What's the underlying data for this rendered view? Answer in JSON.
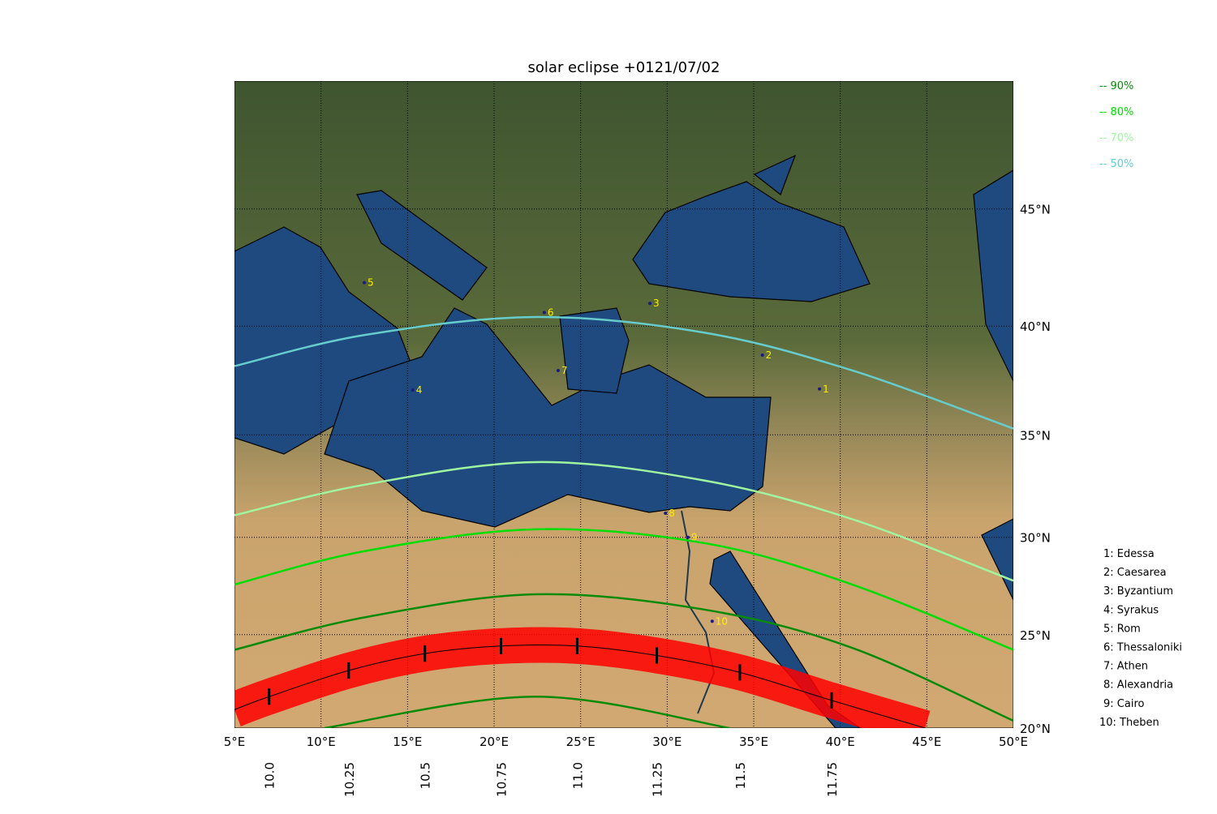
{
  "title": "solar eclipse +0121/07/02",
  "lon_lim": [
    5,
    50
  ],
  "lat_lim": [
    20,
    50
  ],
  "lon_ticks": [
    {
      "value": 5,
      "label": "5°E"
    },
    {
      "value": 10,
      "label": "10°E"
    },
    {
      "value": 15,
      "label": "15°E"
    },
    {
      "value": 20,
      "label": "20°E"
    },
    {
      "value": 25,
      "label": "25°E"
    },
    {
      "value": 30,
      "label": "30°E"
    },
    {
      "value": 35,
      "label": "35°E"
    },
    {
      "value": 40,
      "label": "40°E"
    },
    {
      "value": 45,
      "label": "45°E"
    },
    {
      "value": 50,
      "label": "50°E"
    }
  ],
  "lat_ticks": [
    {
      "value": 20,
      "label": "20°N"
    },
    {
      "value": 25,
      "label": "25°N"
    },
    {
      "value": 30,
      "label": "30°N"
    },
    {
      "value": 35,
      "label": "35°N"
    },
    {
      "value": 40,
      "label": "40°N"
    },
    {
      "value": 45,
      "label": "45°N"
    }
  ],
  "curves": [
    {
      "name": "-- 90%",
      "color": "#0a8a0a",
      "lon": [
        5,
        12.5,
        22.4,
        32.2,
        40.7,
        50
      ],
      "lat": [
        24.2,
        25.9,
        27.1,
        26.3,
        24.3,
        20.4
      ],
      "south_lon": [
        10.2,
        22.4,
        33.6
      ],
      "south_lat": [
        20.0,
        21.7,
        20.0
      ]
    },
    {
      "name": "-- 80%",
      "color": "#00dd00",
      "lon": [
        5,
        12.5,
        22.4,
        32.2,
        40.7,
        50
      ],
      "lat": [
        27.6,
        29.3,
        30.4,
        29.7,
        27.6,
        24.2
      ]
    },
    {
      "name": "-- 70%",
      "color": "#a0f5a0",
      "lon": [
        5,
        12.5,
        22.4,
        32.2,
        40.7,
        50
      ],
      "lat": [
        31.1,
        32.6,
        33.7,
        32.8,
        30.9,
        27.8
      ]
    },
    {
      "name": "-- 50%",
      "color": "#66cccc",
      "lon": [
        5,
        12.5,
        22.4,
        32.2,
        40.7,
        50
      ],
      "lat": [
        38.2,
        39.6,
        40.4,
        39.7,
        38.0,
        35.3
      ]
    }
  ],
  "central_path": {
    "color": "#ff0000",
    "lon": [
      5,
      7.0,
      11.6,
      16.0,
      20.4,
      24.8,
      29.4,
      34.2,
      39.5,
      44.9
    ],
    "lat": [
      21.0,
      21.7,
      23.1,
      24.0,
      24.4,
      24.4,
      23.9,
      23.0,
      21.5,
      20.0
    ]
  },
  "time_marks": [
    {
      "value": 10,
      "label": "10.0",
      "lon": 7.0,
      "lat": 21.7
    },
    {
      "value": 10.25,
      "label": "10.25",
      "lon": 11.6,
      "lat": 23.1
    },
    {
      "value": 10.5,
      "label": "10.5",
      "lon": 16.0,
      "lat": 24.0
    },
    {
      "value": 10.75,
      "label": "10.75",
      "lon": 20.4,
      "lat": 24.4
    },
    {
      "value": 11,
      "label": "11.0",
      "lon": 24.8,
      "lat": 24.4
    },
    {
      "value": 11.25,
      "label": "11.25",
      "lon": 29.4,
      "lat": 23.9
    },
    {
      "value": 11.5,
      "label": "11.5",
      "lon": 34.2,
      "lat": 23.0
    },
    {
      "value": 11.75,
      "label": "11.75",
      "lon": 39.5,
      "lat": 21.5
    }
  ],
  "cities": [
    {
      "number": "1",
      "legend": "1: Edessa",
      "lon": 38.8,
      "lat": 37.15
    },
    {
      "number": "2",
      "legend": "2: Caesarea",
      "lon": 35.5,
      "lat": 38.7
    },
    {
      "number": "3",
      "legend": "3: Byzantium",
      "lon": 29.0,
      "lat": 41.0
    },
    {
      "number": "4",
      "legend": "4: Syrakus",
      "lon": 15.3,
      "lat": 37.1
    },
    {
      "number": "5",
      "legend": "5: Rom",
      "lon": 12.5,
      "lat": 41.9
    },
    {
      "number": "6",
      "legend": "6: Thessaloniki",
      "lon": 22.9,
      "lat": 40.6
    },
    {
      "number": "7",
      "legend": "7: Athen",
      "lon": 23.7,
      "lat": 38.0
    },
    {
      "number": "8",
      "legend": "8: Alexandria",
      "lon": 29.9,
      "lat": 31.2
    },
    {
      "number": "9",
      "legend": "9: Cairo",
      "lon": 31.2,
      "lat": 30.0
    },
    {
      "number": "10",
      "legend": "10: Theben",
      "lon": 32.6,
      "lat": 25.7
    }
  ]
}
